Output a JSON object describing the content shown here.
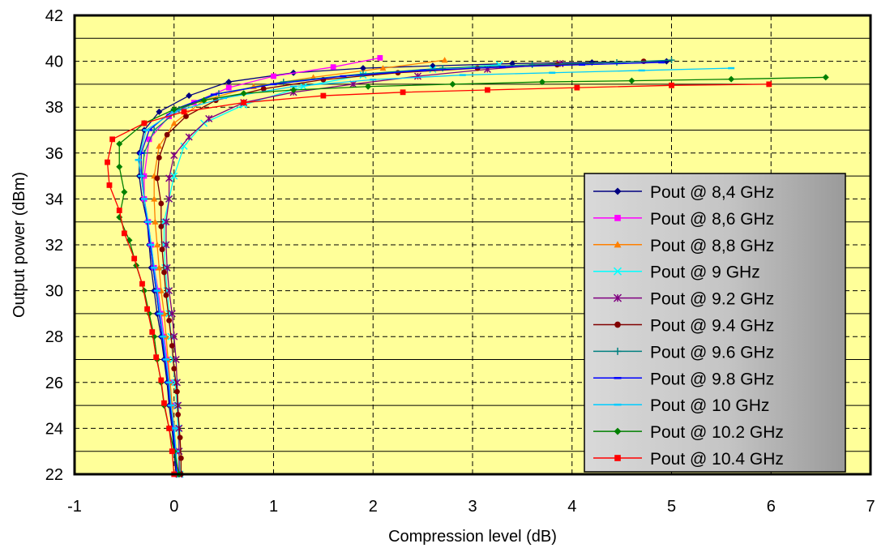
{
  "colors": {
    "plot_background": "#ffff99",
    "legend_background": "#bfbfbf",
    "grid_major": "#000000"
  },
  "chart_data": {
    "type": "line",
    "title": "",
    "xlabel": "Compression level (dB)",
    "ylabel": "Output power (dBm)",
    "xlim": [
      -1,
      7
    ],
    "ylim": [
      22,
      42
    ],
    "xticks": [
      -1,
      0,
      1,
      2,
      3,
      4,
      5,
      6,
      7
    ],
    "yticks": [
      22,
      24,
      26,
      28,
      30,
      32,
      34,
      36,
      38,
      40,
      42
    ],
    "grid": "x dashed at every major tick; y dashed at even values, solid at odd values",
    "legend_position": "right-bottom",
    "series": [
      {
        "name": "Pout @ 8,4 GHz",
        "color": "#000080",
        "marker": "diamond",
        "points": [
          [
            0.02,
            22
          ],
          [
            0.0,
            23
          ],
          [
            -0.02,
            24
          ],
          [
            -0.05,
            25
          ],
          [
            -0.07,
            26
          ],
          [
            -0.1,
            27
          ],
          [
            -0.13,
            28
          ],
          [
            -0.17,
            29
          ],
          [
            -0.2,
            30
          ],
          [
            -0.23,
            31
          ],
          [
            -0.25,
            32
          ],
          [
            -0.27,
            33
          ],
          [
            -0.32,
            34
          ],
          [
            -0.35,
            35
          ],
          [
            -0.35,
            36
          ],
          [
            -0.3,
            37
          ],
          [
            -0.15,
            37.8
          ],
          [
            0.15,
            38.5
          ],
          [
            0.55,
            39.1
          ],
          [
            1.2,
            39.5
          ],
          [
            1.9,
            39.7
          ],
          [
            2.6,
            39.8
          ],
          [
            3.4,
            39.9
          ],
          [
            4.2,
            39.95
          ],
          [
            4.95,
            40.0
          ]
        ]
      },
      {
        "name": "Pout @ 8,6 GHz",
        "color": "#ff00ff",
        "marker": "square",
        "points": [
          [
            0.03,
            22
          ],
          [
            0.02,
            23
          ],
          [
            0.0,
            24
          ],
          [
            -0.02,
            25
          ],
          [
            -0.04,
            26
          ],
          [
            -0.07,
            27
          ],
          [
            -0.1,
            28
          ],
          [
            -0.13,
            29
          ],
          [
            -0.16,
            30
          ],
          [
            -0.2,
            31
          ],
          [
            -0.23,
            32
          ],
          [
            -0.26,
            33
          ],
          [
            -0.3,
            34
          ],
          [
            -0.3,
            35
          ],
          [
            -0.25,
            36.6
          ],
          [
            -0.05,
            37.6
          ],
          [
            0.2,
            38.2
          ],
          [
            0.55,
            38.85
          ],
          [
            1.0,
            39.35
          ],
          [
            1.6,
            39.75
          ],
          [
            2.07,
            40.15
          ]
        ]
      },
      {
        "name": "Pout @ 8,8 GHz",
        "color": "#ff8000",
        "marker": "triangle",
        "points": [
          [
            0.04,
            22
          ],
          [
            0.02,
            23
          ],
          [
            0.0,
            24
          ],
          [
            -0.02,
            25
          ],
          [
            -0.04,
            26
          ],
          [
            -0.06,
            27
          ],
          [
            -0.08,
            28
          ],
          [
            -0.1,
            29
          ],
          [
            -0.13,
            30
          ],
          [
            -0.15,
            31
          ],
          [
            -0.17,
            32
          ],
          [
            -0.19,
            33
          ],
          [
            -0.2,
            34
          ],
          [
            -0.2,
            35
          ],
          [
            -0.15,
            36.3
          ],
          [
            0.0,
            37.3
          ],
          [
            0.3,
            38.3
          ],
          [
            0.8,
            38.9
          ],
          [
            1.4,
            39.3
          ],
          [
            2.1,
            39.7
          ],
          [
            2.72,
            40.05
          ]
        ]
      },
      {
        "name": "Pout @ 9 GHz",
        "color": "#00ffff",
        "marker": "x",
        "points": [
          [
            0.06,
            22
          ],
          [
            0.05,
            23
          ],
          [
            0.04,
            24
          ],
          [
            0.03,
            25
          ],
          [
            0.01,
            26
          ],
          [
            -0.01,
            27
          ],
          [
            -0.03,
            28
          ],
          [
            -0.05,
            29
          ],
          [
            -0.07,
            30
          ],
          [
            -0.09,
            31
          ],
          [
            -0.1,
            32
          ],
          [
            -0.1,
            33
          ],
          [
            -0.05,
            34
          ],
          [
            0.0,
            35
          ],
          [
            0.1,
            36.3
          ],
          [
            0.3,
            37.3
          ],
          [
            0.7,
            38.1
          ],
          [
            1.3,
            38.9
          ],
          [
            1.9,
            39.4
          ],
          [
            2.6,
            39.65
          ],
          [
            3.27,
            39.85
          ]
        ]
      },
      {
        "name": "Pout @ 9.2 GHz",
        "color": "#800080",
        "marker": "star",
        "points": [
          [
            0.05,
            22
          ],
          [
            0.05,
            23
          ],
          [
            0.05,
            24
          ],
          [
            0.04,
            25
          ],
          [
            0.03,
            26
          ],
          [
            0.02,
            27
          ],
          [
            0.0,
            28
          ],
          [
            -0.02,
            29
          ],
          [
            -0.05,
            30
          ],
          [
            -0.07,
            31
          ],
          [
            -0.08,
            32
          ],
          [
            -0.08,
            33
          ],
          [
            -0.05,
            34
          ],
          [
            -0.05,
            34.9
          ],
          [
            0.0,
            35.9
          ],
          [
            0.15,
            36.7
          ],
          [
            0.35,
            37.5
          ],
          [
            0.7,
            38.2
          ],
          [
            1.2,
            38.65
          ],
          [
            1.8,
            39.0
          ],
          [
            2.45,
            39.35
          ],
          [
            3.15,
            39.65
          ],
          [
            3.88,
            39.9
          ]
        ]
      },
      {
        "name": "Pout @ 9.4 GHz",
        "color": "#800000",
        "marker": "circle",
        "points": [
          [
            0.07,
            22
          ],
          [
            0.07,
            22.7
          ],
          [
            0.06,
            23.6
          ],
          [
            0.04,
            24.6
          ],
          [
            0.03,
            25.6
          ],
          [
            0.0,
            26.6
          ],
          [
            -0.02,
            27.6
          ],
          [
            -0.05,
            28.7
          ],
          [
            -0.08,
            29.8
          ],
          [
            -0.1,
            30.8
          ],
          [
            -0.12,
            31.8
          ],
          [
            -0.13,
            32.8
          ],
          [
            -0.13,
            33.8
          ],
          [
            -0.17,
            34.9
          ],
          [
            -0.15,
            35.8
          ],
          [
            -0.07,
            36.8
          ],
          [
            0.12,
            37.6
          ],
          [
            0.42,
            38.3
          ],
          [
            0.9,
            38.8
          ],
          [
            1.5,
            39.2
          ],
          [
            2.25,
            39.5
          ],
          [
            3.05,
            39.7
          ],
          [
            3.85,
            39.85
          ],
          [
            4.72,
            40.0
          ]
        ]
      },
      {
        "name": "Pout @ 9.6 GHz",
        "color": "#008080",
        "marker": "plus",
        "points": [
          [
            0.03,
            22
          ],
          [
            0.01,
            23
          ],
          [
            -0.01,
            24
          ],
          [
            -0.04,
            25
          ],
          [
            -0.06,
            26
          ],
          [
            -0.09,
            27
          ],
          [
            -0.12,
            28
          ],
          [
            -0.15,
            29
          ],
          [
            -0.18,
            30
          ],
          [
            -0.21,
            31
          ],
          [
            -0.24,
            32
          ],
          [
            -0.27,
            33
          ],
          [
            -0.3,
            34
          ],
          [
            -0.32,
            35
          ],
          [
            -0.3,
            36
          ],
          [
            -0.2,
            37
          ],
          [
            0.05,
            37.9
          ],
          [
            0.45,
            38.6
          ],
          [
            1.1,
            39.1
          ],
          [
            1.9,
            39.45
          ],
          [
            2.7,
            39.7
          ],
          [
            3.6,
            39.85
          ],
          [
            4.45,
            39.95
          ],
          [
            5.0,
            40.05
          ]
        ]
      },
      {
        "name": "Pout @ 9.8 GHz",
        "color": "#0000ff",
        "marker": "dash",
        "points": [
          [
            0.03,
            22
          ],
          [
            0.01,
            23
          ],
          [
            -0.01,
            24
          ],
          [
            -0.04,
            25
          ],
          [
            -0.06,
            26
          ],
          [
            -0.09,
            27
          ],
          [
            -0.12,
            28
          ],
          [
            -0.15,
            29
          ],
          [
            -0.18,
            30
          ],
          [
            -0.21,
            31
          ],
          [
            -0.24,
            32
          ],
          [
            -0.27,
            33
          ],
          [
            -0.3,
            34
          ],
          [
            -0.33,
            35
          ],
          [
            -0.33,
            36
          ],
          [
            -0.25,
            37
          ],
          [
            0.0,
            37.9
          ],
          [
            0.4,
            38.55
          ],
          [
            1.0,
            39.0
          ],
          [
            1.7,
            39.35
          ],
          [
            2.5,
            39.6
          ],
          [
            3.3,
            39.75
          ],
          [
            4.1,
            39.85
          ],
          [
            4.9,
            39.95
          ]
        ]
      },
      {
        "name": "Pout @ 10 GHz",
        "color": "#00ccff",
        "marker": "dash",
        "points": [
          [
            0.04,
            22
          ],
          [
            0.02,
            23
          ],
          [
            0.0,
            24
          ],
          [
            -0.03,
            25
          ],
          [
            -0.05,
            26
          ],
          [
            -0.08,
            27
          ],
          [
            -0.11,
            28
          ],
          [
            -0.14,
            29
          ],
          [
            -0.17,
            30
          ],
          [
            -0.2,
            31
          ],
          [
            -0.23,
            32
          ],
          [
            -0.26,
            33
          ],
          [
            -0.3,
            34
          ],
          [
            -0.33,
            35
          ],
          [
            -0.36,
            35.7
          ],
          [
            -0.28,
            37
          ],
          [
            0.0,
            37.8
          ],
          [
            0.5,
            38.4
          ],
          [
            1.2,
            38.9
          ],
          [
            2.0,
            39.2
          ],
          [
            2.9,
            39.4
          ],
          [
            3.8,
            39.5
          ],
          [
            4.7,
            39.6
          ],
          [
            5.6,
            39.7
          ]
        ]
      },
      {
        "name": "Pout @ 10.2 GHz",
        "color": "#008000",
        "marker": "diamond",
        "points": [
          [
            0.05,
            22
          ],
          [
            0.0,
            23
          ],
          [
            -0.05,
            24
          ],
          [
            -0.1,
            25
          ],
          [
            -0.13,
            26
          ],
          [
            -0.17,
            27
          ],
          [
            -0.2,
            28
          ],
          [
            -0.25,
            29
          ],
          [
            -0.3,
            30
          ],
          [
            -0.38,
            31.1
          ],
          [
            -0.45,
            32.2
          ],
          [
            -0.55,
            33.2
          ],
          [
            -0.5,
            34.3
          ],
          [
            -0.55,
            35.4
          ],
          [
            -0.55,
            36.4
          ],
          [
            -0.3,
            37.3
          ],
          [
            0.0,
            37.9
          ],
          [
            0.3,
            38.3
          ],
          [
            0.7,
            38.6
          ],
          [
            1.2,
            38.75
          ],
          [
            1.95,
            38.9
          ],
          [
            2.8,
            39.0
          ],
          [
            3.7,
            39.1
          ],
          [
            4.6,
            39.15
          ],
          [
            5.6,
            39.22
          ],
          [
            6.55,
            39.3
          ]
        ]
      },
      {
        "name": "Pout @ 10.4 GHz",
        "color": "#ff0000",
        "marker": "square",
        "points": [
          [
            0.0,
            22
          ],
          [
            -0.02,
            23
          ],
          [
            -0.05,
            24
          ],
          [
            -0.1,
            25.1
          ],
          [
            -0.13,
            26.1
          ],
          [
            -0.18,
            27.1
          ],
          [
            -0.22,
            28.2
          ],
          [
            -0.27,
            29.2
          ],
          [
            -0.32,
            30.3
          ],
          [
            -0.4,
            31.4
          ],
          [
            -0.5,
            32.5
          ],
          [
            -0.55,
            33.5
          ],
          [
            -0.65,
            34.6
          ],
          [
            -0.67,
            35.6
          ],
          [
            -0.62,
            36.6
          ],
          [
            -0.3,
            37.3
          ],
          [
            0.1,
            37.8
          ],
          [
            0.7,
            38.2
          ],
          [
            1.5,
            38.5
          ],
          [
            2.3,
            38.65
          ],
          [
            3.15,
            38.75
          ],
          [
            4.05,
            38.85
          ],
          [
            5.0,
            38.95
          ],
          [
            5.98,
            39.0
          ]
        ]
      }
    ]
  }
}
